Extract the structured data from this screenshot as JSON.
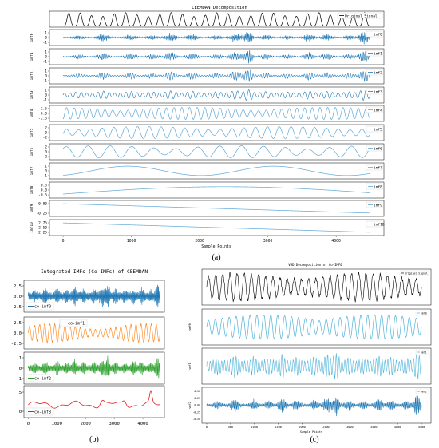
{
  "panel_labels": {
    "a": "(a)",
    "b": "(b)",
    "c": "(c)"
  },
  "colors": {
    "signal": "#000000",
    "imf_a": "#1f77b4",
    "imf_a_light": "#5fa8d8",
    "co0": "#1f77b4",
    "co1": "#ff7f0e",
    "co2": "#2ca02c",
    "co3": "#e41a1c",
    "vmd_light": "#4fb3d9",
    "vmd_dark": "#1f77b4"
  },
  "chart_data": [
    {
      "type": "line",
      "title": "CEEMDAN Decomposition",
      "xlabel": "Sample Points",
      "xticks": [
        "0",
        "1000",
        "2000",
        "3000",
        "4000"
      ],
      "xlim": [
        -200,
        4700
      ],
      "series": [
        {
          "name": "Original Signal",
          "ylabels": []
        },
        {
          "name": "imf0",
          "ylabel": "imf0",
          "yticks": [
            "1",
            "0",
            "-1"
          ]
        },
        {
          "name": "imf1",
          "ylabel": "imf1",
          "yticks": [
            "1",
            "0",
            "-1"
          ]
        },
        {
          "name": "imf2",
          "ylabel": "imf2",
          "yticks": [
            "1",
            "0",
            "-1"
          ]
        },
        {
          "name": "imf3",
          "ylabel": "imf3",
          "yticks": [
            "1",
            "0",
            "-1"
          ]
        },
        {
          "name": "imf4",
          "ylabel": "imf4",
          "yticks": [
            "2.5",
            "0.0",
            "-2.5"
          ]
        },
        {
          "name": "imf5",
          "ylabel": "imf5",
          "yticks": [
            "2",
            "0",
            "-2"
          ]
        },
        {
          "name": "imf6",
          "ylabel": "imf6",
          "yticks": [
            "2",
            "0",
            "-2"
          ]
        },
        {
          "name": "imf7",
          "ylabel": "imf7",
          "yticks": [
            "1",
            "0",
            "-1"
          ]
        },
        {
          "name": "imf8",
          "ylabel": "imf8",
          "yticks": [
            "0.5",
            "0.0",
            "-0.5"
          ]
        },
        {
          "name": "imf9",
          "ylabel": "imf9",
          "yticks": [
            "0.00",
            "-0.25"
          ]
        },
        {
          "name": "imf10",
          "ylabel": "imf10",
          "yticks": [
            "2.75",
            "2.50",
            "2.25"
          ]
        }
      ]
    },
    {
      "type": "line",
      "title": "Integrated IMFs (Co-IMFs) of CEEMDAN",
      "xticks": [
        "0",
        "1000",
        "2000",
        "3000",
        "4000"
      ],
      "xlim": [
        -150,
        4750
      ],
      "series": [
        {
          "name": "co-imf0",
          "yticks": [
            "2.5",
            "0.0",
            "-2.5"
          ]
        },
        {
          "name": "co-imf1",
          "yticks": [
            "2.5",
            "0.0",
            "-2.5"
          ]
        },
        {
          "name": "co-imf2",
          "yticks": [
            "1",
            "0",
            "-1"
          ]
        },
        {
          "name": "co-imf3",
          "yticks": [
            "5",
            "0"
          ]
        }
      ]
    },
    {
      "type": "line",
      "title": "VMD Decomposition of Co-IMF0",
      "xlabel": "Sample Points",
      "xticks": [
        "0",
        "500",
        "1000",
        "1500",
        "2000",
        "2500",
        "3000",
        "3500",
        "4000",
        "4500"
      ],
      "xlim": [
        -100,
        4700
      ],
      "series": [
        {
          "name": "Original Signal"
        },
        {
          "name": "vmf0",
          "ylabel": "vmf0"
        },
        {
          "name": "vmf1",
          "ylabel": "vmf1"
        },
        {
          "name": "vmf2",
          "ylabel": "vmf2",
          "yticks": [
            "0.50",
            "0.25",
            "0.00",
            "-0.25",
            "-0.50"
          ]
        }
      ]
    }
  ]
}
